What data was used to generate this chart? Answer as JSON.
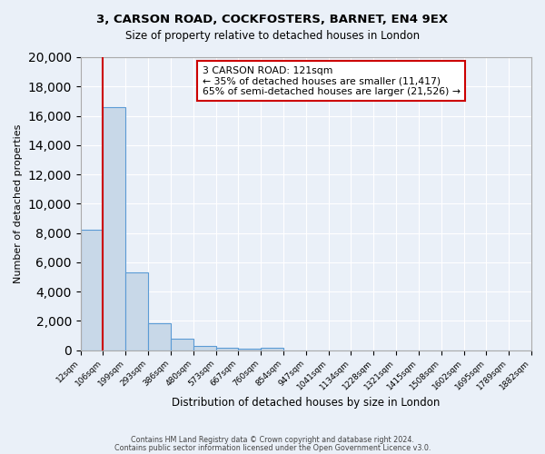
{
  "title": "3, CARSON ROAD, COCKFOSTERS, BARNET, EN4 9EX",
  "subtitle": "Size of property relative to detached houses in London",
  "xlabel": "Distribution of detached houses by size in London",
  "ylabel": "Number of detached properties",
  "bar_values": [
    8200,
    16600,
    5300,
    1850,
    750,
    280,
    175,
    100,
    150,
    0,
    0,
    0,
    0,
    0,
    0,
    0,
    0,
    0,
    0,
    0
  ],
  "bin_labels": [
    "12sqm",
    "106sqm",
    "199sqm",
    "293sqm",
    "386sqm",
    "480sqm",
    "573sqm",
    "667sqm",
    "760sqm",
    "854sqm",
    "947sqm",
    "1041sqm",
    "1134sqm",
    "1228sqm",
    "1321sqm",
    "1415sqm",
    "1508sqm",
    "1602sqm",
    "1695sqm",
    "1789sqm",
    "1882sqm"
  ],
  "bar_color": "#c8d8e8",
  "bar_edge_color": "#5b9bd5",
  "red_line_x": 1,
  "annotation_box_text": "3 CARSON ROAD: 121sqm\n← 35% of detached houses are smaller (11,417)\n65% of semi-detached houses are larger (21,526) →",
  "ylim": [
    0,
    20000
  ],
  "yticks": [
    0,
    2000,
    4000,
    6000,
    8000,
    10000,
    12000,
    14000,
    16000,
    18000,
    20000
  ],
  "footer_line1": "Contains HM Land Registry data © Crown copyright and database right 2024.",
  "footer_line2": "Contains public sector information licensed under the Open Government Licence v3.0.",
  "bg_color": "#eaf0f8",
  "plot_bg_color": "#eaf0f8",
  "grid_color": "#ffffff",
  "annotation_box_edge_color": "#cc0000",
  "red_line_color": "#cc0000"
}
